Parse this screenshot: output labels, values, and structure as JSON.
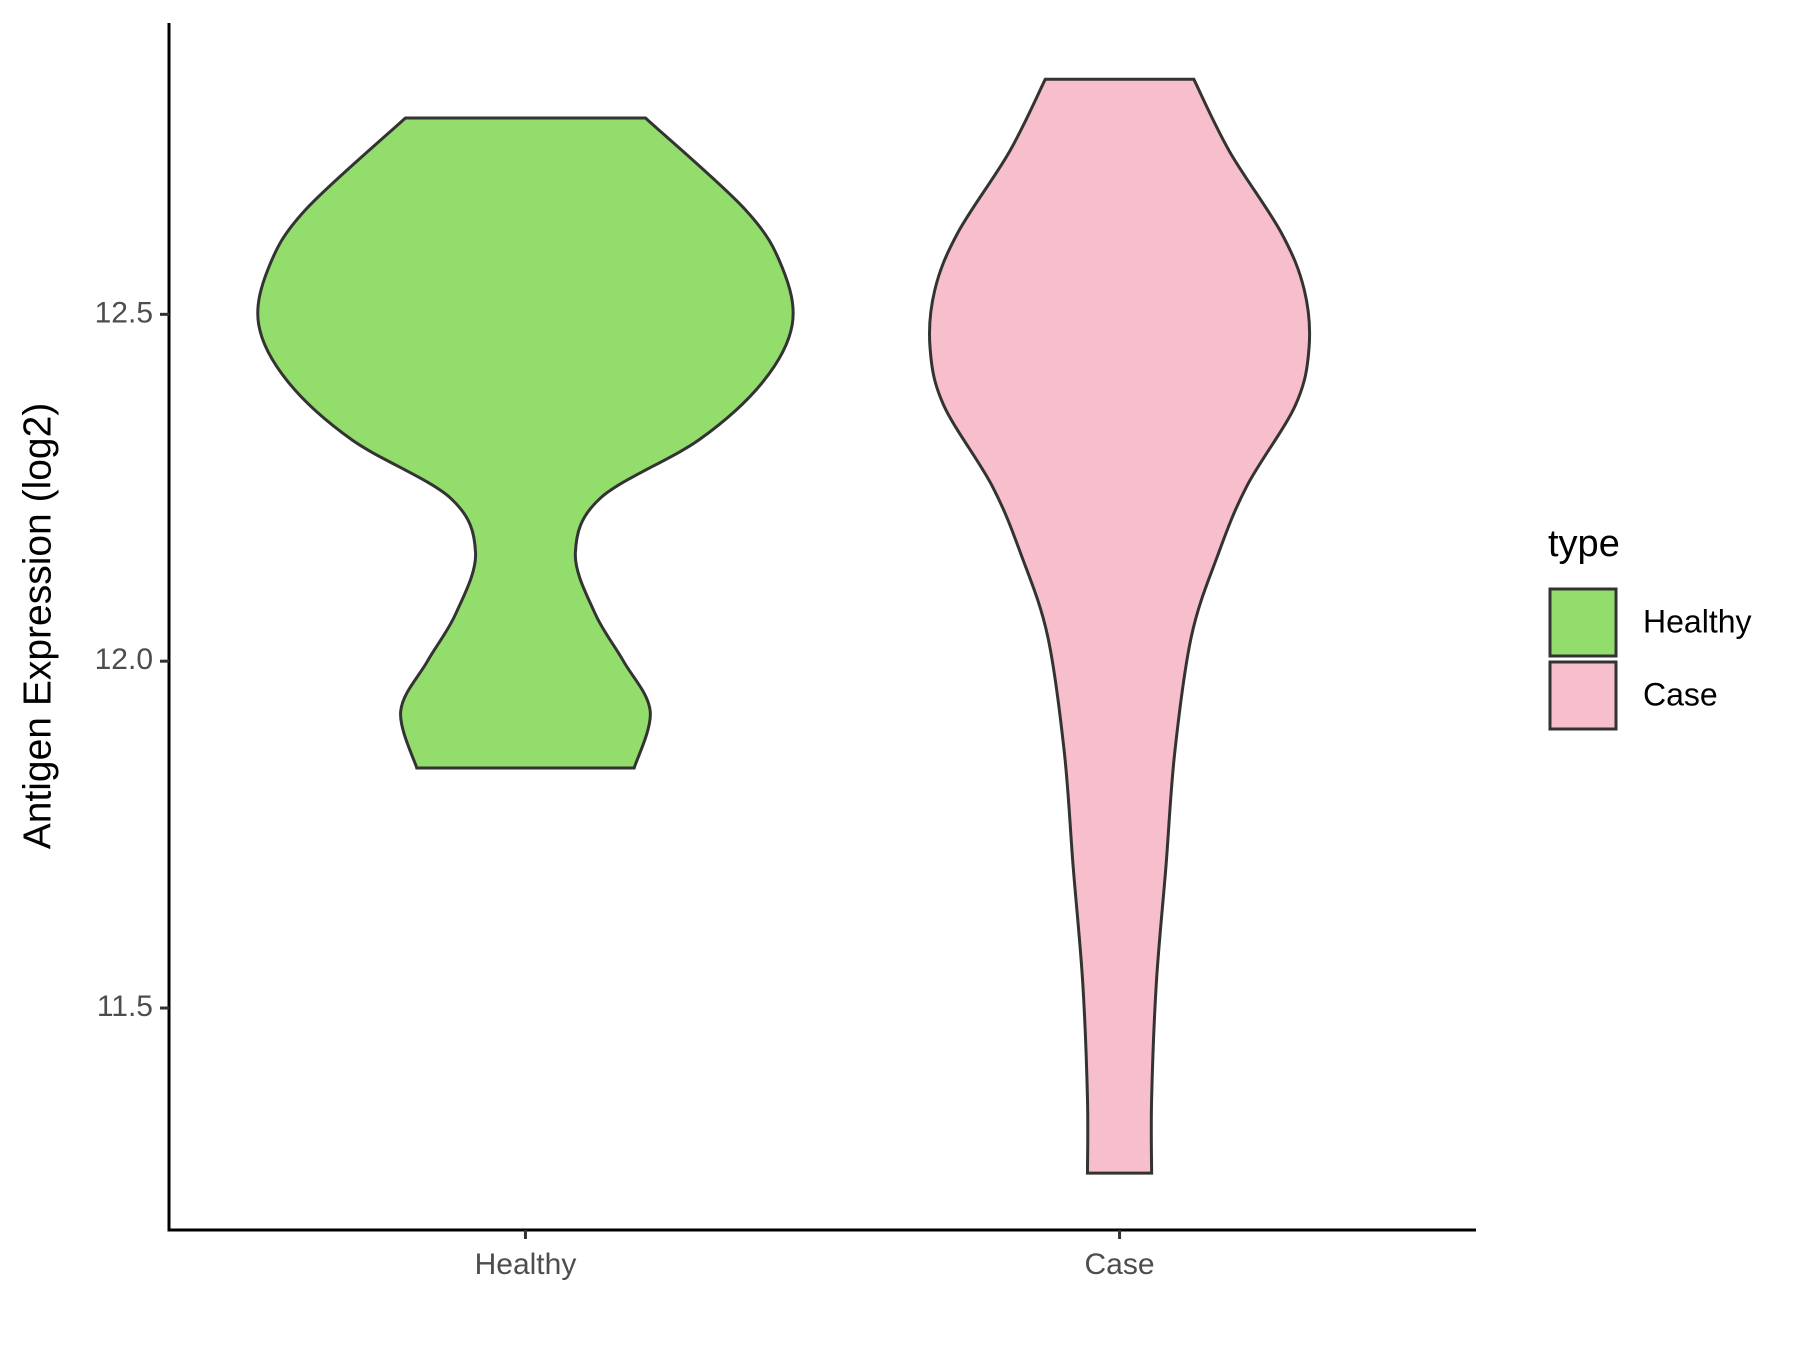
{
  "chart_data": {
    "type": "violin",
    "y_label": "Antigen Expression (log2)",
    "categories": [
      "Healthy",
      "Case"
    ],
    "legend_title": "type",
    "ylim": [
      11.18,
      12.92
    ],
    "yticks": [
      {
        "value": 11.5,
        "label": "11.5"
      },
      {
        "value": 12.0,
        "label": "12.0"
      },
      {
        "value": 12.5,
        "label": "12.5"
      }
    ],
    "series": [
      {
        "name": "Healthy",
        "color": "#93dd6c",
        "values": [
          12.783,
          12.651,
          12.568,
          12.485,
          12.402,
          12.319,
          12.235,
          12.156,
          12.069,
          12.0,
          11.928,
          11.846
        ],
        "density": [
          0.202,
          0.37,
          0.432,
          0.449,
          0.399,
          0.292,
          0.126,
          0.084,
          0.117,
          0.165,
          0.21,
          0.183
        ]
      },
      {
        "name": "Case",
        "color": "#f7bfcb",
        "values": [
          12.839,
          12.735,
          12.618,
          12.535,
          12.452,
          12.369,
          12.252,
          12.152,
          12.036,
          11.869,
          11.703,
          11.537,
          11.37,
          11.262
        ],
        "density": [
          0.125,
          0.185,
          0.272,
          0.311,
          0.319,
          0.296,
          0.214,
          0.165,
          0.121,
          0.093,
          0.078,
          0.062,
          0.054,
          0.054
        ]
      }
    ]
  }
}
